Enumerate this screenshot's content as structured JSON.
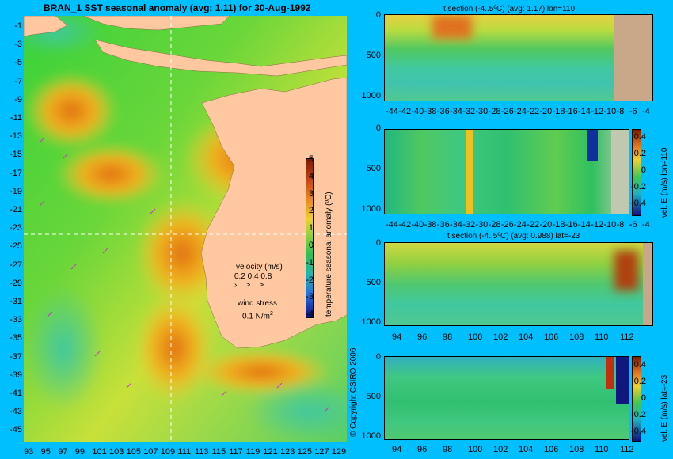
{
  "chart_data": [
    {
      "type": "heatmap",
      "title": "BRAN_1  SST seasonal anomaly  (avg: 1.11) for 30-Aug-1992",
      "x_ticks": [
        "93",
        "95",
        "97",
        "99",
        "101",
        "103",
        "105",
        "107",
        "109",
        "111",
        "113",
        "115",
        "117",
        "119",
        "121",
        "123",
        "125",
        "127",
        "129"
      ],
      "y_ticks": [
        "-1",
        "-3",
        "-5",
        "-7",
        "-9",
        "-11",
        "-13",
        "-15",
        "-17",
        "-19",
        "-21",
        "-23",
        "-25",
        "-27",
        "-29",
        "-31",
        "-33",
        "-35",
        "-37",
        "-39",
        "-41",
        "-43",
        "-45"
      ],
      "xlim": [
        93,
        130
      ],
      "ylim": [
        -45,
        1
      ],
      "colorbar": {
        "label": "temperature seasonal anomaly (ºC)",
        "ticks": [
          "5",
          "4",
          "3",
          "2",
          "1",
          "0",
          "-1",
          "-2",
          "-3",
          "-4"
        ],
        "range": [
          -4,
          5
        ]
      },
      "legend": {
        "velocity_label": "velocity (m/s)",
        "velocity_values": "0.2 0.4 0.8",
        "wind_label": "wind stress",
        "wind_value": "0.1 N/m",
        "wind_exp": "2"
      },
      "colors": {
        "ocean_mid": "#33cc33",
        "land": "#ffc8a0",
        "ocean_bg": "#00bfff"
      }
    },
    {
      "type": "heatmap",
      "title": "t section (-4..5ºC) (avg: 1.17) lon=110",
      "x_ticks": [
        "-44",
        "-42",
        "-40",
        "-38",
        "-36",
        "-34",
        "-32",
        "-30",
        "-28",
        "-26",
        "-24",
        "-22",
        "-20",
        "-18",
        "-16",
        "-14",
        "-12",
        "-10",
        "-8",
        "-6",
        "-4"
      ],
      "y_ticks": [
        "0",
        "500",
        "1000"
      ],
      "xlim": [
        -45,
        -2
      ],
      "ylim": [
        1050,
        0
      ]
    },
    {
      "type": "heatmap",
      "title": "",
      "x_ticks": [
        "-44",
        "-42",
        "-40",
        "-38",
        "-36",
        "-34",
        "-32",
        "-30",
        "-28",
        "-26",
        "-24",
        "-22",
        "-20",
        "-18",
        "-16",
        "-14",
        "-12",
        "-10",
        "-8",
        "-6",
        "-4"
      ],
      "y_ticks": [
        "0",
        "500",
        "1000"
      ],
      "colorbar": {
        "label": "vel. E (m/s) lon=110",
        "ticks": [
          "0.4",
          "0.2",
          "0",
          "-0.2",
          "-0.4"
        ]
      }
    },
    {
      "type": "heatmap",
      "title": "t section (-4..5ºC) (avg: 0.988) lat=-23",
      "x_ticks": [
        "94",
        "96",
        "98",
        "100",
        "102",
        "104",
        "106",
        "108",
        "110",
        "112"
      ],
      "y_ticks": [
        "0",
        "500",
        "1000"
      ]
    },
    {
      "type": "heatmap",
      "title": "",
      "x_ticks": [
        "94",
        "96",
        "98",
        "100",
        "102",
        "104",
        "106",
        "108",
        "110",
        "112"
      ],
      "y_ticks": [
        "0",
        "500",
        "1000"
      ],
      "colorbar": {
        "label": "vel. E (m/s) lat=-23",
        "ticks": [
          "0.4",
          "0.2",
          "0",
          "-0.2",
          "-0.4"
        ]
      }
    }
  ],
  "copyright": "© Copyright CSIRO 2006"
}
